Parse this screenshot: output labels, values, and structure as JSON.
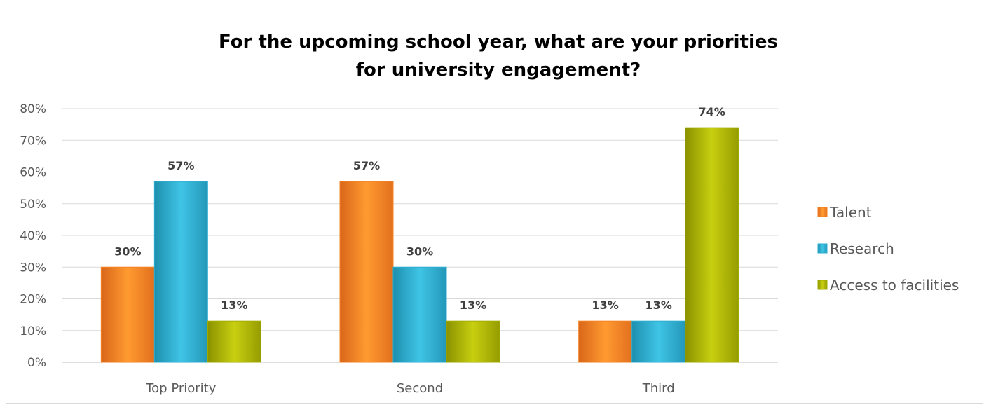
{
  "chart_data": {
    "type": "bar",
    "title_lines": [
      "For the upcoming school year, what are your priorities",
      "for university engagement?"
    ],
    "categories": [
      "Top Priority",
      "Second",
      "Third"
    ],
    "series": [
      {
        "name": "Talent",
        "values": [
          30,
          57,
          13
        ],
        "labels": [
          "30%",
          "57%",
          "13%"
        ],
        "color": "#f5821f"
      },
      {
        "name": "Research",
        "values": [
          57,
          30,
          13
        ],
        "labels": [
          "57%",
          "30%",
          "13%"
        ],
        "color": "#2aaed0"
      },
      {
        "name": "Access to facilities",
        "values": [
          13,
          13,
          74
        ],
        "labels": [
          "13%",
          "13%",
          "74%"
        ],
        "color": "#a3ad00"
      }
    ],
    "ylim": [
      0,
      80
    ],
    "yticks": [
      "0%",
      "10%",
      "20%",
      "30%",
      "40%",
      "50%",
      "60%",
      "70%",
      "80%"
    ],
    "grid": true,
    "legend_position": "right"
  }
}
